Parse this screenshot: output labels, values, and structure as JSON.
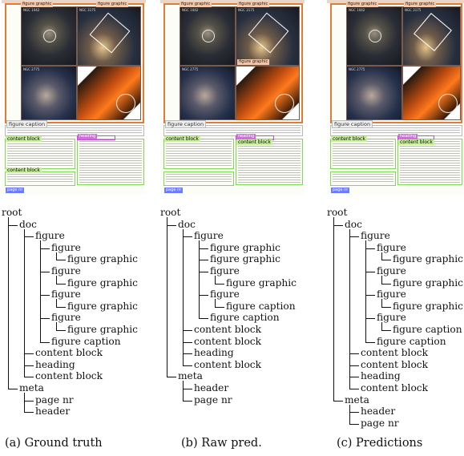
{
  "panels": [
    {
      "id": "a",
      "caption": "(a) Ground truth",
      "thumbnail": {
        "tags": {
          "figure_1": "figure graphic",
          "figure_2": "figure graphic",
          "figure_3": "figure graphic",
          "figure_4": "figure graphic",
          "figure_caption": "figure caption",
          "content_1": "content block",
          "content_2": "content block",
          "page_nr": "page nr",
          "heading": "heading"
        },
        "photo_labels": [
          "NGC 1042",
          "NGC 3175",
          "NGC 2775",
          ""
        ]
      },
      "tree": {
        "root": "root",
        "nodes": [
          {
            "label": "doc",
            "depth": 1
          },
          {
            "label": "figure",
            "depth": 2
          },
          {
            "label": "figure",
            "depth": 3
          },
          {
            "label": "figure graphic",
            "depth": 4
          },
          {
            "label": "figure",
            "depth": 3
          },
          {
            "label": "figure graphic",
            "depth": 4
          },
          {
            "label": "figure",
            "depth": 3
          },
          {
            "label": "figure graphic",
            "depth": 4
          },
          {
            "label": "figure",
            "depth": 3
          },
          {
            "label": "figure graphic",
            "depth": 4
          },
          {
            "label": "figure caption",
            "depth": 3
          },
          {
            "label": "content block",
            "depth": 2
          },
          {
            "label": "heading",
            "depth": 2
          },
          {
            "label": "content block",
            "depth": 2
          },
          {
            "label": "meta",
            "depth": 1
          },
          {
            "label": "page nr",
            "depth": 2
          },
          {
            "label": "header",
            "depth": 2
          }
        ]
      }
    },
    {
      "id": "b",
      "caption": "(b) Raw pred.",
      "thumbnail": {
        "tags": {
          "figure_1": "figure graphic",
          "figure_2": "figure graphic",
          "figure_3": "figure graphic",
          "figure_4": "figure graphic",
          "figure_caption": "figure caption",
          "content_1": "content block",
          "content_2": "content block",
          "page_nr": "page nr",
          "heading": "heading"
        },
        "photo_labels": [
          "NGC 1042",
          "NGC 3175",
          "NGC 2775",
          ""
        ]
      },
      "tree": {
        "root": "root",
        "nodes": [
          {
            "label": "doc",
            "depth": 1
          },
          {
            "label": "figure",
            "depth": 2
          },
          {
            "label": "figure graphic",
            "depth": 3
          },
          {
            "label": "figure graphic",
            "depth": 3
          },
          {
            "label": "figure",
            "depth": 3
          },
          {
            "label": "figure graphic",
            "depth": 4
          },
          {
            "label": "figure",
            "depth": 3
          },
          {
            "label": "figure caption",
            "depth": 4
          },
          {
            "label": "figure caption",
            "depth": 3
          },
          {
            "label": "content block",
            "depth": 2
          },
          {
            "label": "content block",
            "depth": 2
          },
          {
            "label": "heading",
            "depth": 2
          },
          {
            "label": "content block",
            "depth": 2
          },
          {
            "label": "meta",
            "depth": 1
          },
          {
            "label": "header",
            "depth": 2
          },
          {
            "label": "page nr",
            "depth": 2
          }
        ]
      }
    },
    {
      "id": "c",
      "caption": "(c) Predictions",
      "thumbnail": {
        "tags": {
          "figure_1": "figure graphic",
          "figure_2": "figure graphic",
          "figure_3": "figure graphic",
          "figure_4": "figure graphic",
          "figure_caption": "figure caption",
          "content_1": "content block",
          "content_2": "content block",
          "page_nr": "page nr",
          "heading": "heading"
        },
        "photo_labels": [
          "NGC 1042",
          "NGC 3175",
          "NGC 2775",
          ""
        ]
      },
      "tree": {
        "root": "root",
        "nodes": [
          {
            "label": "doc",
            "depth": 1
          },
          {
            "label": "figure",
            "depth": 2
          },
          {
            "label": "figure",
            "depth": 3
          },
          {
            "label": "figure graphic",
            "depth": 4
          },
          {
            "label": "figure",
            "depth": 3
          },
          {
            "label": "figure graphic",
            "depth": 4
          },
          {
            "label": "figure",
            "depth": 3
          },
          {
            "label": "figure graphic",
            "depth": 4
          },
          {
            "label": "figure",
            "depth": 3
          },
          {
            "label": "figure caption",
            "depth": 4
          },
          {
            "label": "figure caption",
            "depth": 3
          },
          {
            "label": "content block",
            "depth": 2
          },
          {
            "label": "content block",
            "depth": 2
          },
          {
            "label": "heading",
            "depth": 2
          },
          {
            "label": "content block",
            "depth": 2
          },
          {
            "label": "meta",
            "depth": 1
          },
          {
            "label": "header",
            "depth": 2
          },
          {
            "label": "page nr",
            "depth": 2
          }
        ]
      }
    }
  ],
  "colors": {
    "figure": "#e07b39",
    "figure_caption": "#b8b8b8",
    "content_block": "#7ed957",
    "heading": "#c14fd4",
    "page_nr": "#6b7cff"
  }
}
